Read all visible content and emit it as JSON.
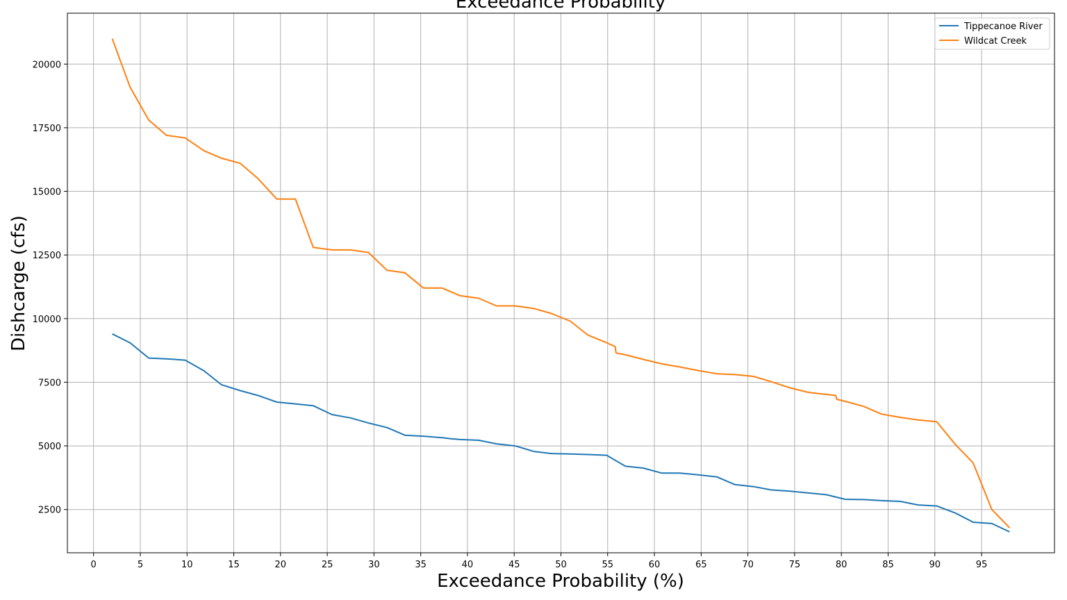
{
  "chart_data": {
    "type": "line",
    "title": "Exceedance Probability",
    "xlabel": "Exceedance Probability (%)",
    "ylabel": "Dishcarge (cfs)",
    "xlim": [
      -2.8,
      102.8
    ],
    "ylim": [
      800,
      22000
    ],
    "xticks": [
      0,
      5,
      10,
      15,
      20,
      25,
      30,
      35,
      40,
      45,
      50,
      55,
      60,
      65,
      70,
      75,
      80,
      85,
      90,
      95
    ],
    "yticks": [
      2500,
      5000,
      7500,
      10000,
      12500,
      15000,
      17500,
      20000
    ],
    "grid": true,
    "legend_position": "top-right",
    "series": [
      {
        "name": "Tippecanoe River",
        "color": "#1f77b4",
        "x": [
          2,
          3.9,
          5.9,
          7.8,
          9.8,
          11.8,
          13.7,
          15.7,
          17.6,
          19.6,
          21.6,
          23.5,
          25.5,
          27.5,
          29.4,
          31.4,
          33.3,
          35.3,
          37.3,
          38.2,
          39.2,
          41.2,
          43.1,
          45.1,
          47.1,
          49,
          51,
          52.9,
          54.9,
          56.9,
          58.8,
          60.8,
          62.7,
          64.7,
          66.7,
          68.6,
          70.6,
          72.5,
          74.5,
          76.5,
          78.4,
          80.4,
          82.4,
          84.3,
          86.3,
          88.2,
          90.2,
          92.2,
          94.1,
          96.1,
          98
        ],
        "y": [
          9400,
          9050,
          8450,
          8420,
          8370,
          7950,
          7400,
          7170,
          6980,
          6720,
          6650,
          6580,
          6230,
          6100,
          5900,
          5720,
          5420,
          5380,
          5320,
          5280,
          5250,
          5220,
          5080,
          5000,
          4780,
          4700,
          4680,
          4660,
          4630,
          4200,
          4130,
          3930,
          3930,
          3860,
          3780,
          3480,
          3400,
          3270,
          3220,
          3150,
          3080,
          2900,
          2890,
          2850,
          2820,
          2680,
          2640,
          2360,
          2000,
          1950,
          1620
        ]
      },
      {
        "name": "Wildcat Creek",
        "color": "#ff7f0e",
        "x": [
          2,
          3.9,
          5.9,
          7.8,
          9.8,
          11.8,
          13.7,
          15.7,
          17.6,
          19.6,
          21.6,
          23.5,
          25.5,
          27.5,
          29.4,
          31.4,
          33.3,
          35.3,
          37.3,
          39.2,
          41.2,
          43.1,
          45.1,
          47.1,
          49,
          51,
          52.9,
          54.9,
          55.8,
          55.9,
          56.9,
          58.8,
          60.8,
          62.7,
          64.7,
          66.7,
          68.6,
          70.6,
          72.5,
          73.5,
          74.5,
          76.5,
          78.4,
          79.4,
          79.5,
          80.4,
          82.4,
          84.3,
          86.3,
          88.2,
          90.2,
          92.2,
          94.1,
          96.1,
          98
        ],
        "y": [
          21000,
          19100,
          17800,
          17200,
          17100,
          16600,
          16300,
          16100,
          15500,
          14700,
          14700,
          12800,
          12700,
          12700,
          12600,
          11900,
          11800,
          11200,
          11200,
          10900,
          10800,
          10500,
          10500,
          10400,
          10200,
          9900,
          9350,
          9050,
          8900,
          8650,
          8580,
          8400,
          8220,
          8100,
          7960,
          7830,
          7800,
          7730,
          7520,
          7400,
          7280,
          7100,
          7020,
          6980,
          6830,
          6750,
          6550,
          6250,
          6120,
          6020,
          5950,
          5050,
          4330,
          2500,
          1780
        ]
      }
    ]
  }
}
